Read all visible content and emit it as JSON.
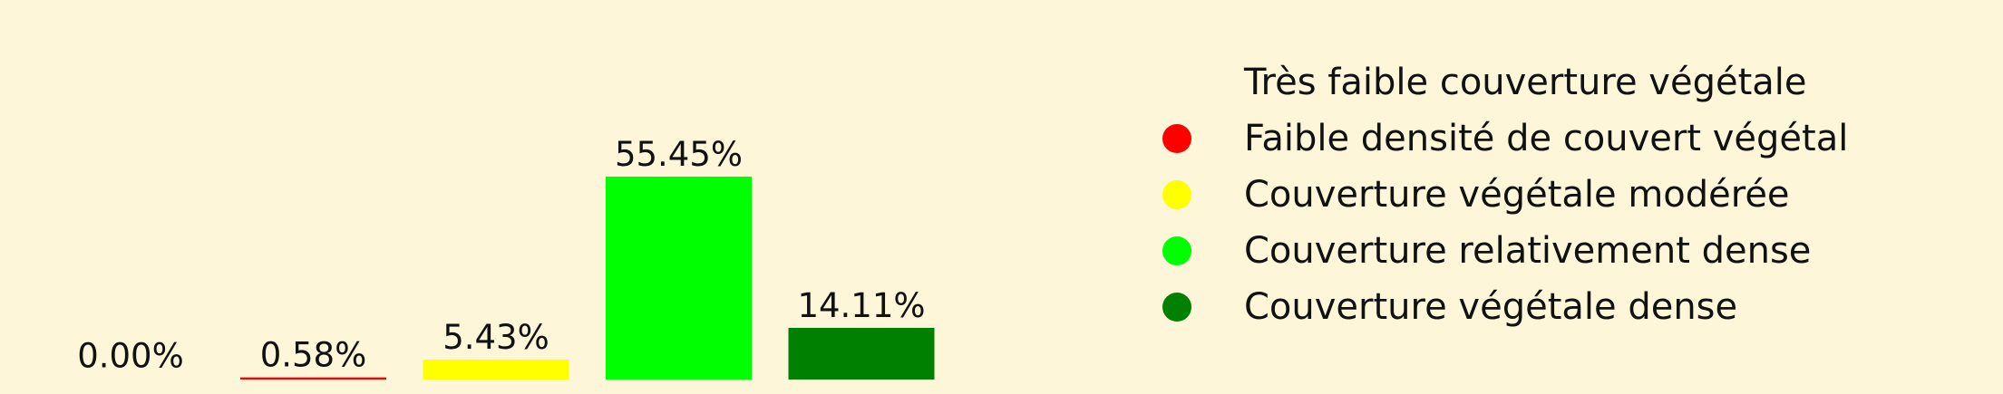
{
  "chart_data": {
    "type": "bar",
    "categories": [
      "Très faible couverture végétale",
      "Faible densité de couvert végétal",
      "Couverture végétale modérée",
      "Couverture relativement dense",
      "Couverture végétale dense"
    ],
    "values": [
      0.0,
      0.58,
      5.43,
      55.45,
      14.11
    ],
    "data_labels": [
      "0.00%",
      "0.58%",
      "5.43%",
      "55.45%",
      "14.11%"
    ],
    "colors": [
      "#fdf6d9",
      "#ff0000",
      "#ffff00",
      "#00ff00",
      "#008000"
    ],
    "title": "",
    "xlabel": "",
    "ylabel": "",
    "ylim": [
      0,
      55.45
    ],
    "grid": false,
    "legend_placement": "right"
  },
  "legend": {
    "items": [
      {
        "label": "Très faible couverture végétale",
        "color": "#fdf6d9"
      },
      {
        "label": "Faible densité de couvert végétal",
        "color": "#ff0000"
      },
      {
        "label": "Couverture végétale modérée",
        "color": "#ffff00"
      },
      {
        "label": "Couverture relativement dense",
        "color": "#00ff00"
      },
      {
        "label": "Couverture végétale dense",
        "color": "#008000"
      }
    ]
  }
}
